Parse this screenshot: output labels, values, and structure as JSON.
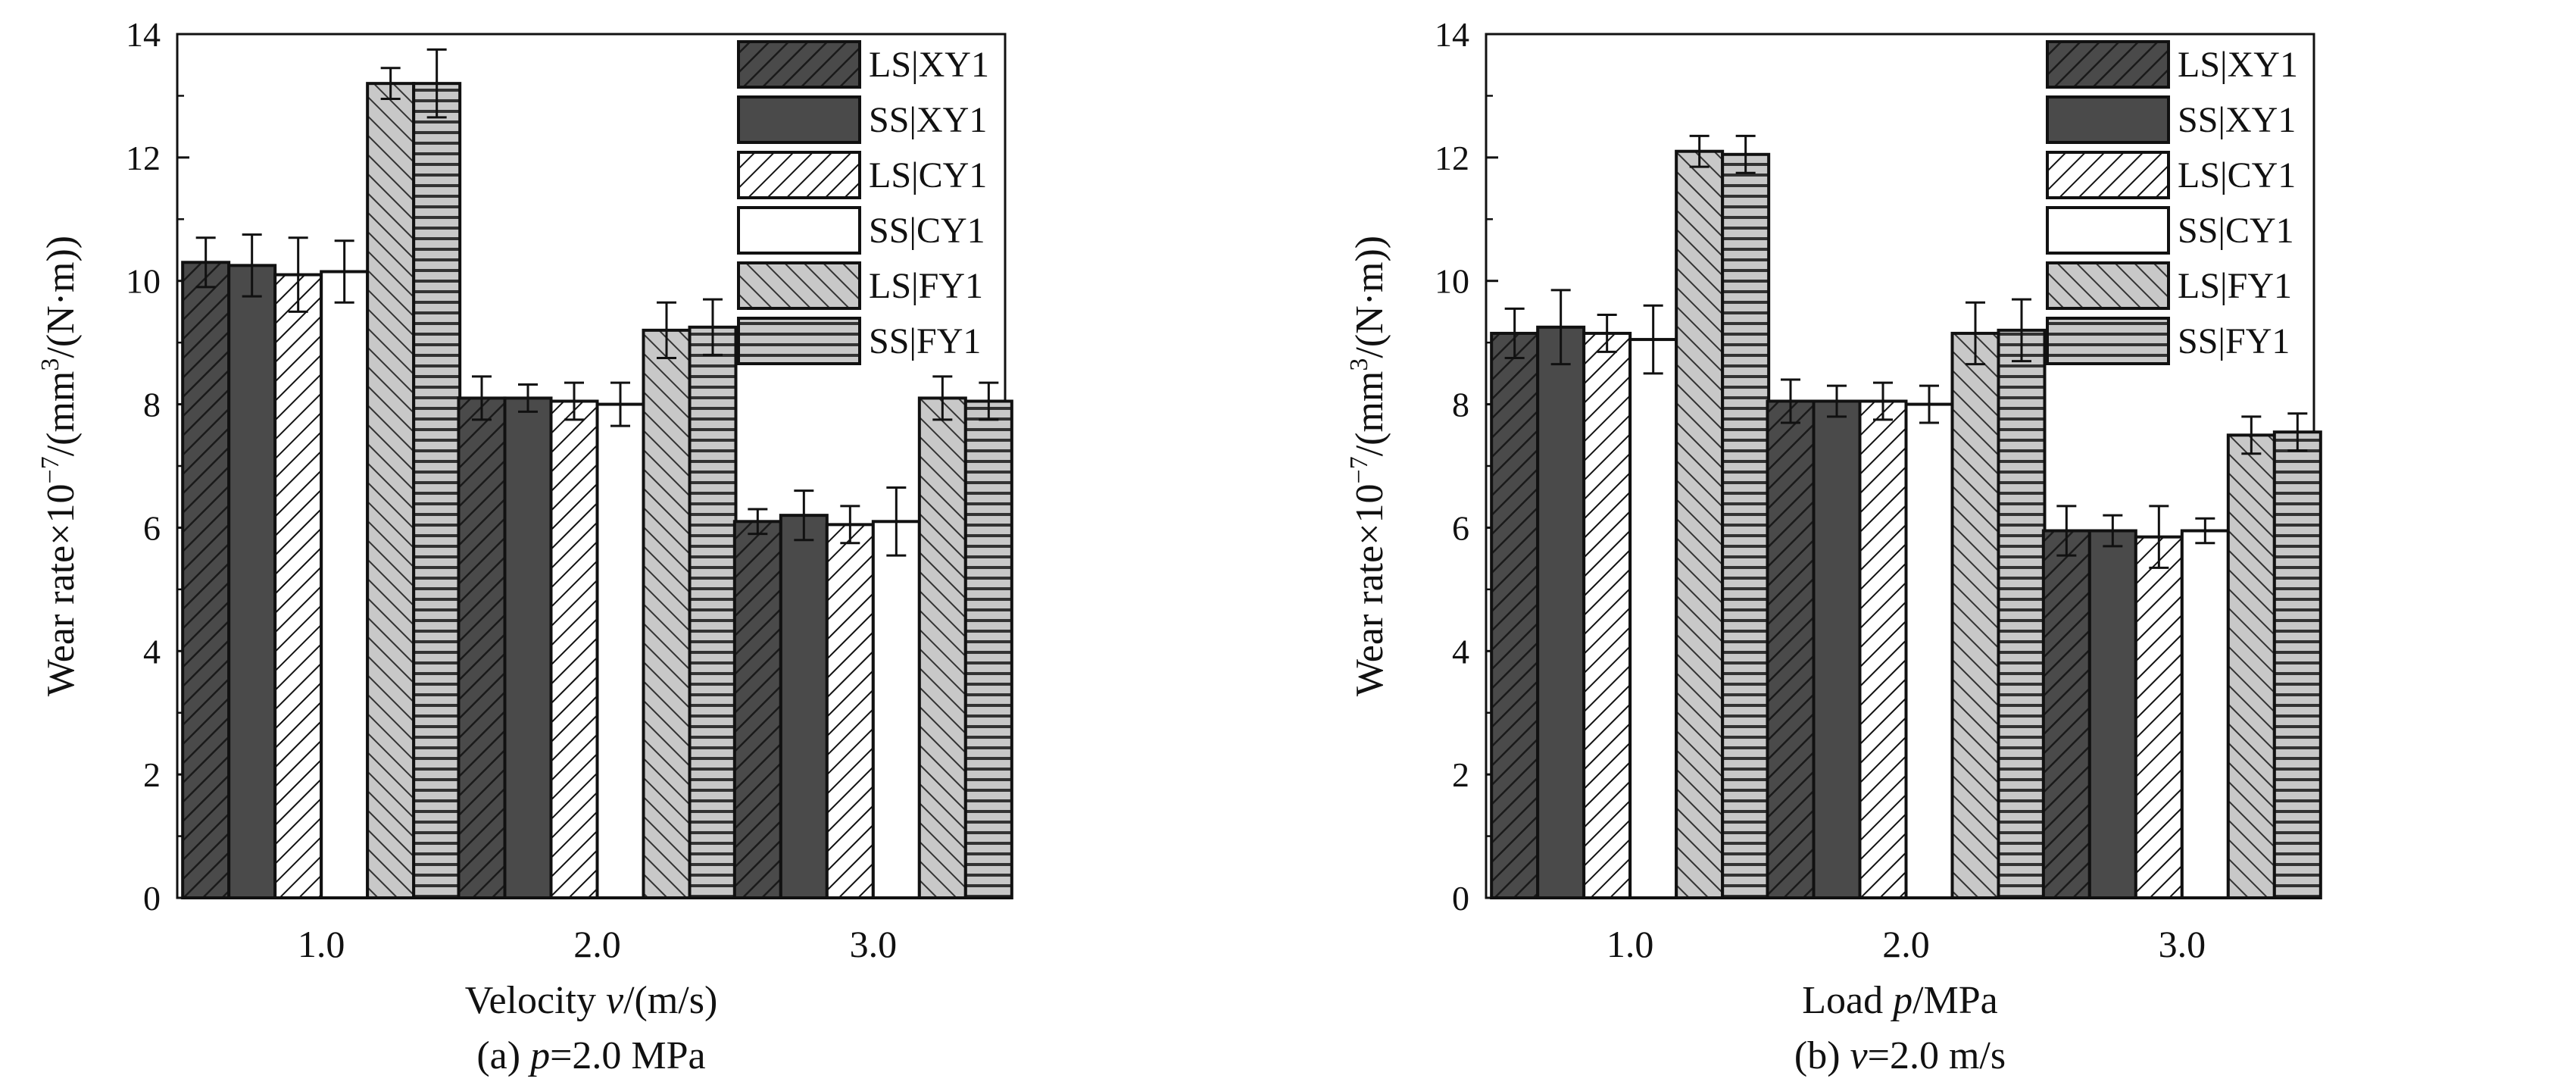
{
  "chart_data": [
    {
      "type": "bar",
      "panel": "(a)",
      "caption_prefix": "(a) ",
      "caption_var": "p",
      "caption_rest": "=2.0 MPa",
      "xlabel_prefix": "Velocity ",
      "xlabel_var": "v",
      "xlabel_rest": "/(m/s)",
      "ylabel_text": "Wear rate×10",
      "ylabel_exp1": "−7",
      "ylabel_mid": "/(mm",
      "ylabel_exp2": "3",
      "ylabel_end": "/(N·m))",
      "ylim": [
        0,
        14
      ],
      "yticks": [
        "0",
        "2",
        "4",
        "6",
        "8",
        "10",
        "12",
        "14"
      ],
      "categories": [
        "1.0",
        "2.0",
        "3.0"
      ],
      "legend_position": "top-right",
      "series": [
        {
          "name": "LS|XY1",
          "pattern": "dark-diag",
          "values": [
            10.3,
            8.1,
            6.1
          ],
          "errors": [
            0.4,
            0.35,
            0.2
          ]
        },
        {
          "name": "SS|XY1",
          "pattern": "dark-solid",
          "values": [
            10.25,
            8.1,
            6.2
          ],
          "errors": [
            0.5,
            0.22,
            0.4
          ]
        },
        {
          "name": "LS|CY1",
          "pattern": "white-diag",
          "values": [
            10.1,
            8.05,
            6.05
          ],
          "errors": [
            0.6,
            0.3,
            0.3
          ]
        },
        {
          "name": "SS|CY1",
          "pattern": "white-solid",
          "values": [
            10.15,
            8.0,
            6.1
          ],
          "errors": [
            0.5,
            0.35,
            0.55
          ]
        },
        {
          "name": "LS|FY1",
          "pattern": "gray-backdiag",
          "values": [
            13.2,
            9.2,
            8.1
          ],
          "errors": [
            0.25,
            0.45,
            0.35
          ]
        },
        {
          "name": "SS|FY1",
          "pattern": "gray-horiz",
          "values": [
            13.2,
            9.25,
            8.05
          ],
          "errors": [
            0.55,
            0.45,
            0.3
          ]
        }
      ]
    },
    {
      "type": "bar",
      "panel": "(b)",
      "caption_prefix": "(b) ",
      "caption_var": "v",
      "caption_rest": "=2.0 m/s",
      "xlabel_prefix": "Load ",
      "xlabel_var": "p",
      "xlabel_rest": "/MPa",
      "ylabel_text": "Wear rate×10",
      "ylabel_exp1": "−7",
      "ylabel_mid": "/(mm",
      "ylabel_exp2": "3",
      "ylabel_end": "/(N·m))",
      "ylim": [
        0,
        14
      ],
      "yticks": [
        "0",
        "2",
        "4",
        "6",
        "8",
        "10",
        "12",
        "14"
      ],
      "categories": [
        "1.0",
        "2.0",
        "3.0"
      ],
      "legend_position": "top-right",
      "series": [
        {
          "name": "LS|XY1",
          "pattern": "dark-diag",
          "values": [
            9.15,
            8.05,
            5.95
          ],
          "errors": [
            0.4,
            0.35,
            0.4
          ]
        },
        {
          "name": "SS|XY1",
          "pattern": "dark-solid",
          "values": [
            9.25,
            8.05,
            5.95
          ],
          "errors": [
            0.6,
            0.25,
            0.25
          ]
        },
        {
          "name": "LS|CY1",
          "pattern": "white-diag",
          "values": [
            9.15,
            8.05,
            5.85
          ],
          "errors": [
            0.3,
            0.3,
            0.5
          ]
        },
        {
          "name": "SS|CY1",
          "pattern": "white-solid",
          "values": [
            9.05,
            8.0,
            5.95
          ],
          "errors": [
            0.55,
            0.3,
            0.2
          ]
        },
        {
          "name": "LS|FY1",
          "pattern": "gray-backdiag",
          "values": [
            12.1,
            9.15,
            7.5
          ],
          "errors": [
            0.25,
            0.5,
            0.3
          ]
        },
        {
          "name": "SS|FY1",
          "pattern": "gray-horiz",
          "values": [
            12.05,
            9.2,
            7.55
          ],
          "errors": [
            0.3,
            0.5,
            0.3
          ]
        }
      ]
    }
  ]
}
